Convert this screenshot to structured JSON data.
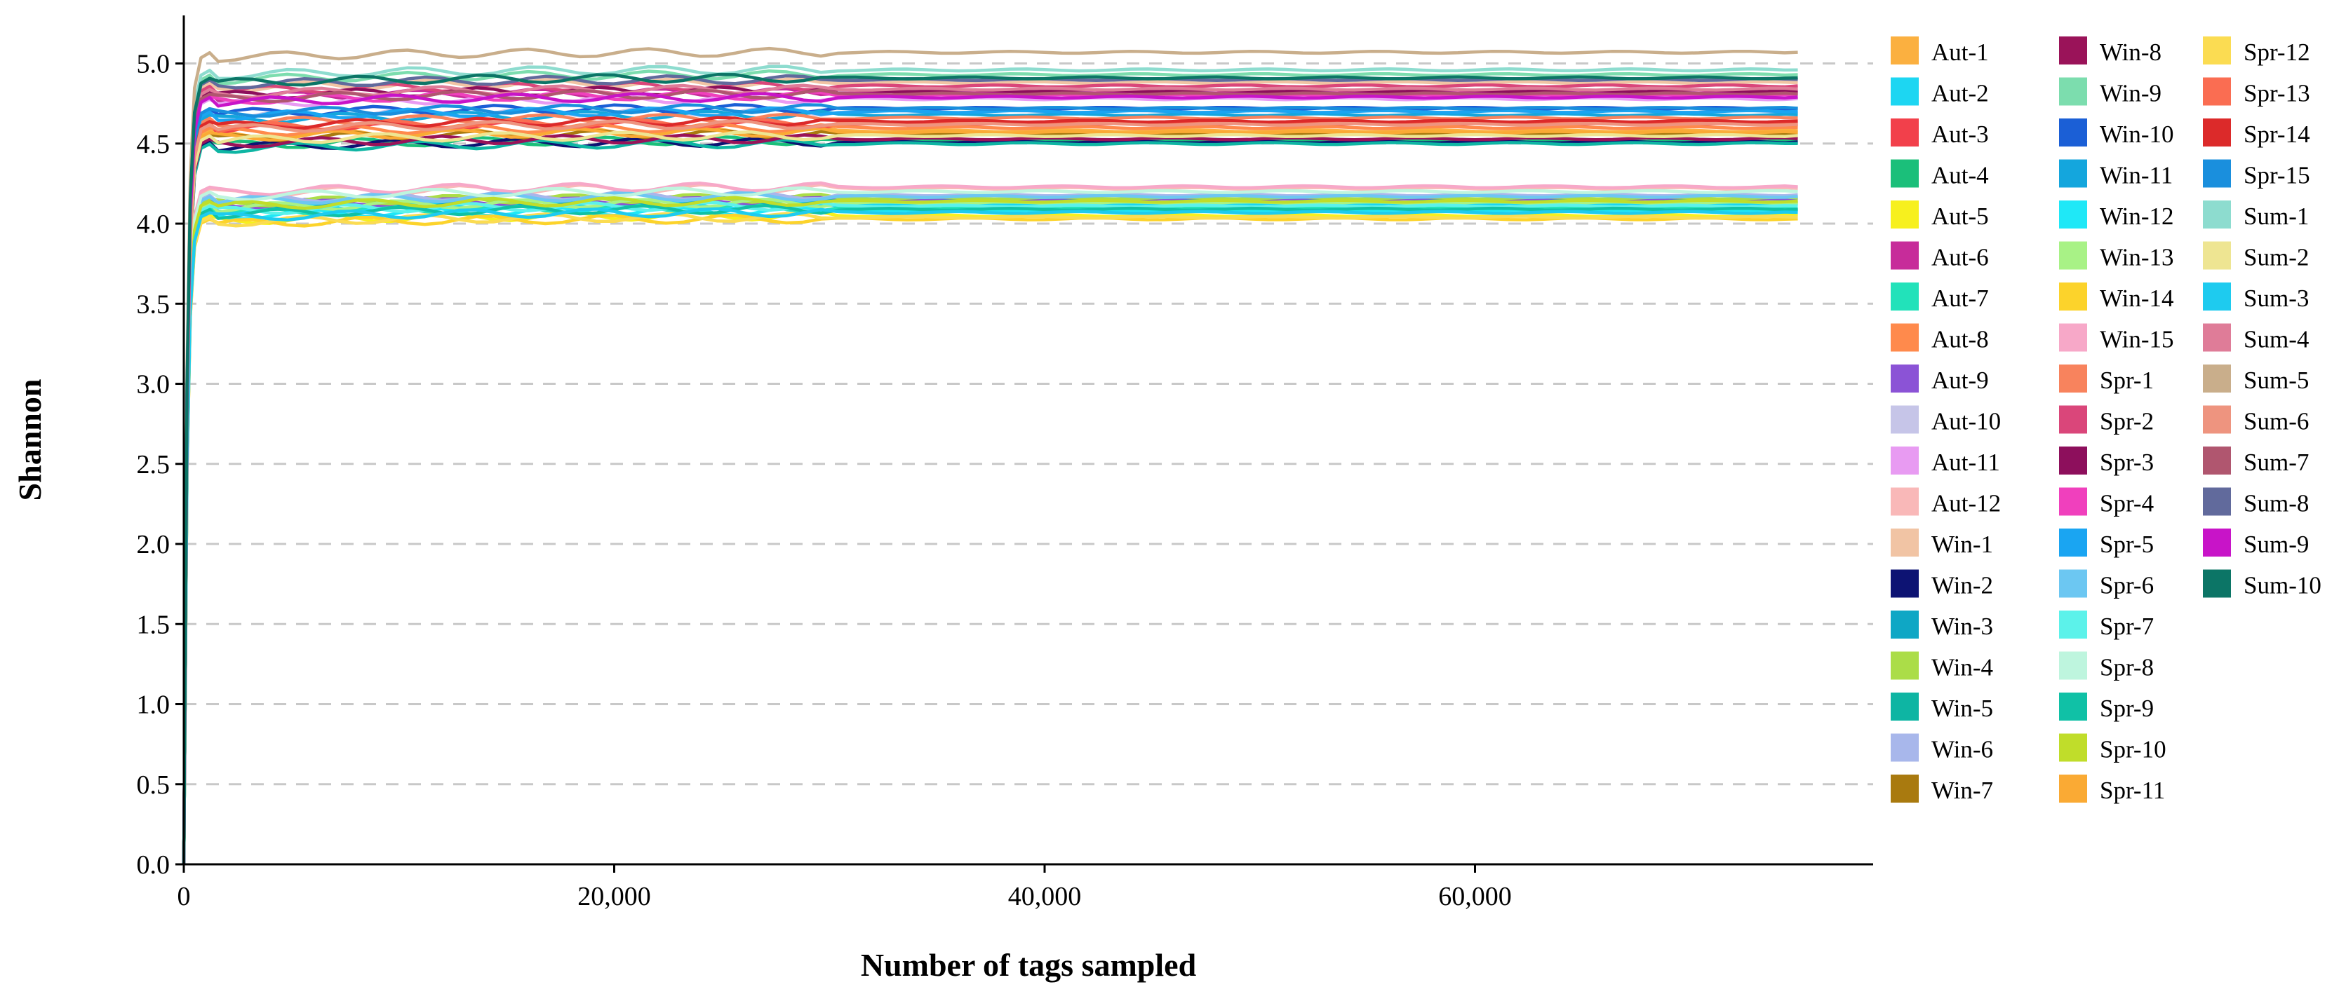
{
  "chart_data": {
    "type": "line",
    "title": "",
    "xlabel": "Number of tags sampled",
    "ylabel": "Shannon",
    "xlim": [
      0,
      78500
    ],
    "ylim": [
      0,
      5.3
    ],
    "x_ticks": [
      0,
      20000,
      40000,
      60000
    ],
    "x_tick_labels": [
      "0",
      "20,000",
      "40,000",
      "60,000"
    ],
    "y_ticks": [
      0.0,
      0.5,
      1.0,
      1.5,
      2.0,
      2.5,
      3.0,
      3.5,
      4.0,
      4.5,
      5.0
    ],
    "y_tick_labels": [
      "0.0",
      "0.5",
      "1.0",
      "1.5",
      "2.0",
      "2.5",
      "3.0",
      "3.5",
      "4.0",
      "4.5",
      "5.0"
    ],
    "grid": "horizontal dashed",
    "legend_position": "right",
    "legend_columns": 3,
    "x_end": 75000,
    "series": [
      {
        "name": "Aut-1",
        "color": "#FBB040",
        "plateau": 4.58
      },
      {
        "name": "Aut-2",
        "color": "#1DD6F2",
        "plateau": 4.12
      },
      {
        "name": "Aut-3",
        "color": "#F2404B",
        "plateau": 4.62
      },
      {
        "name": "Aut-4",
        "color": "#1BBF7A",
        "plateau": 4.52
      },
      {
        "name": "Aut-5",
        "color": "#F7F01E",
        "plateau": 4.05
      },
      {
        "name": "Aut-6",
        "color": "#C72C9A",
        "plateau": 4.82
      },
      {
        "name": "Aut-7",
        "color": "#22E2BA",
        "plateau": 4.1
      },
      {
        "name": "Aut-8",
        "color": "#FF8A4C",
        "plateau": 4.6
      },
      {
        "name": "Aut-9",
        "color": "#8B53D6",
        "plateau": 4.15
      },
      {
        "name": "Aut-10",
        "color": "#C6C5E8",
        "plateau": 4.7
      },
      {
        "name": "Aut-11",
        "color": "#E89BF2",
        "plateau": 4.78
      },
      {
        "name": "Aut-12",
        "color": "#F9B8B8",
        "plateau": 4.22
      },
      {
        "name": "Win-1",
        "color": "#F1C4A4",
        "plateau": 4.88
      },
      {
        "name": "Win-2",
        "color": "#0D1373",
        "plateau": 4.51
      },
      {
        "name": "Win-3",
        "color": "#0FA7C5",
        "plateau": 4.14
      },
      {
        "name": "Win-4",
        "color": "#ABDD48",
        "plateau": 4.16
      },
      {
        "name": "Win-5",
        "color": "#0EB5A3",
        "plateau": 4.5
      },
      {
        "name": "Win-6",
        "color": "#A8B7EB",
        "plateau": 4.18
      },
      {
        "name": "Win-7",
        "color": "#A97A0F",
        "plateau": 4.56
      },
      {
        "name": "Win-8",
        "color": "#9A1359",
        "plateau": 4.53
      },
      {
        "name": "Win-9",
        "color": "#7CDDAE",
        "plateau": 4.93
      },
      {
        "name": "Win-10",
        "color": "#1B5FD6",
        "plateau": 4.72
      },
      {
        "name": "Win-11",
        "color": "#14A6DD",
        "plateau": 4.68
      },
      {
        "name": "Win-12",
        "color": "#1FE8F7",
        "plateau": 4.08
      },
      {
        "name": "Win-13",
        "color": "#A8F286",
        "plateau": 4.13
      },
      {
        "name": "Win-14",
        "color": "#FCD32B",
        "plateau": 4.03
      },
      {
        "name": "Win-15",
        "color": "#F7A8C8",
        "plateau": 4.23
      },
      {
        "name": "Spr-1",
        "color": "#F8835D",
        "plateau": 4.66
      },
      {
        "name": "Spr-2",
        "color": "#DA467A",
        "plateau": 4.86
      },
      {
        "name": "Spr-3",
        "color": "#8D0F5C",
        "plateau": 4.83
      },
      {
        "name": "Spr-4",
        "color": "#F040BD",
        "plateau": 4.8
      },
      {
        "name": "Spr-5",
        "color": "#1AA5F2",
        "plateau": 4.7
      },
      {
        "name": "Spr-6",
        "color": "#6CC7F2",
        "plateau": 4.17
      },
      {
        "name": "Spr-7",
        "color": "#5CF2EA",
        "plateau": 4.11
      },
      {
        "name": "Spr-8",
        "color": "#BEF5DE",
        "plateau": 4.2
      },
      {
        "name": "Spr-9",
        "color": "#10C1A6",
        "plateau": 4.09
      },
      {
        "name": "Spr-10",
        "color": "#C0DD2A",
        "plateau": 4.14
      },
      {
        "name": "Spr-11",
        "color": "#FAAA34",
        "plateau": 4.57
      },
      {
        "name": "Spr-12",
        "color": "#FBDC52",
        "plateau": 4.04
      },
      {
        "name": "Spr-13",
        "color": "#FA6D52",
        "plateau": 4.63
      },
      {
        "name": "Spr-14",
        "color": "#DC2A2A",
        "plateau": 4.64
      },
      {
        "name": "Spr-15",
        "color": "#1A8FDD",
        "plateau": 4.72
      },
      {
        "name": "Sum-1",
        "color": "#8DDCCF",
        "plateau": 4.96
      },
      {
        "name": "Sum-2",
        "color": "#EEE592",
        "plateau": 4.55
      },
      {
        "name": "Sum-3",
        "color": "#1ECBEF",
        "plateau": 4.07
      },
      {
        "name": "Sum-4",
        "color": "#DF7C98",
        "plateau": 4.84
      },
      {
        "name": "Sum-5",
        "color": "#C9AE8B",
        "plateau": 5.07
      },
      {
        "name": "Sum-6",
        "color": "#EE947F",
        "plateau": 4.62
      },
      {
        "name": "Sum-7",
        "color": "#B0566F",
        "plateau": 4.81
      },
      {
        "name": "Sum-8",
        "color": "#616A9C",
        "plateau": 4.9
      },
      {
        "name": "Sum-9",
        "color": "#C814C8",
        "plateau": 4.79
      },
      {
        "name": "Sum-10",
        "color": "#0C7566",
        "plateau": 4.91
      }
    ]
  }
}
